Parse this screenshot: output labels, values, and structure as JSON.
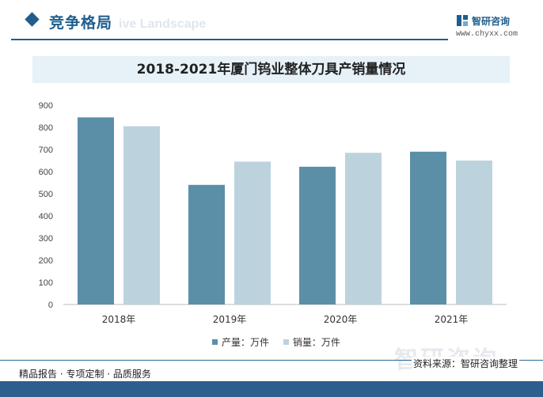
{
  "header": {
    "section_title": "竞争格局",
    "section_watermark": "ive Landscape",
    "logo_name": "智研咨询",
    "logo_url": "www.chyxx.com"
  },
  "chart_data": {
    "type": "bar",
    "title": "2018-2021年厦门钨业整体刀具产销量情况",
    "categories": [
      "2018年",
      "2019年",
      "2020年",
      "2021年"
    ],
    "series": [
      {
        "name": "产量：万件",
        "color": "#5b8fa8",
        "values": [
          845,
          540,
          622,
          690
        ]
      },
      {
        "name": "销量：万件",
        "color": "#bcd3de",
        "values": [
          805,
          645,
          685,
          650
        ]
      }
    ],
    "ylim": [
      0,
      900
    ],
    "yticks": [
      0,
      100,
      200,
      300,
      400,
      500,
      600,
      700,
      800,
      900
    ],
    "grid": false,
    "legend": "bottom"
  },
  "footer": {
    "left_text": "精品报告 · 专项定制 · 品质服务",
    "source_text": "资料来源：智研咨询整理",
    "watermark": "智研咨询"
  }
}
